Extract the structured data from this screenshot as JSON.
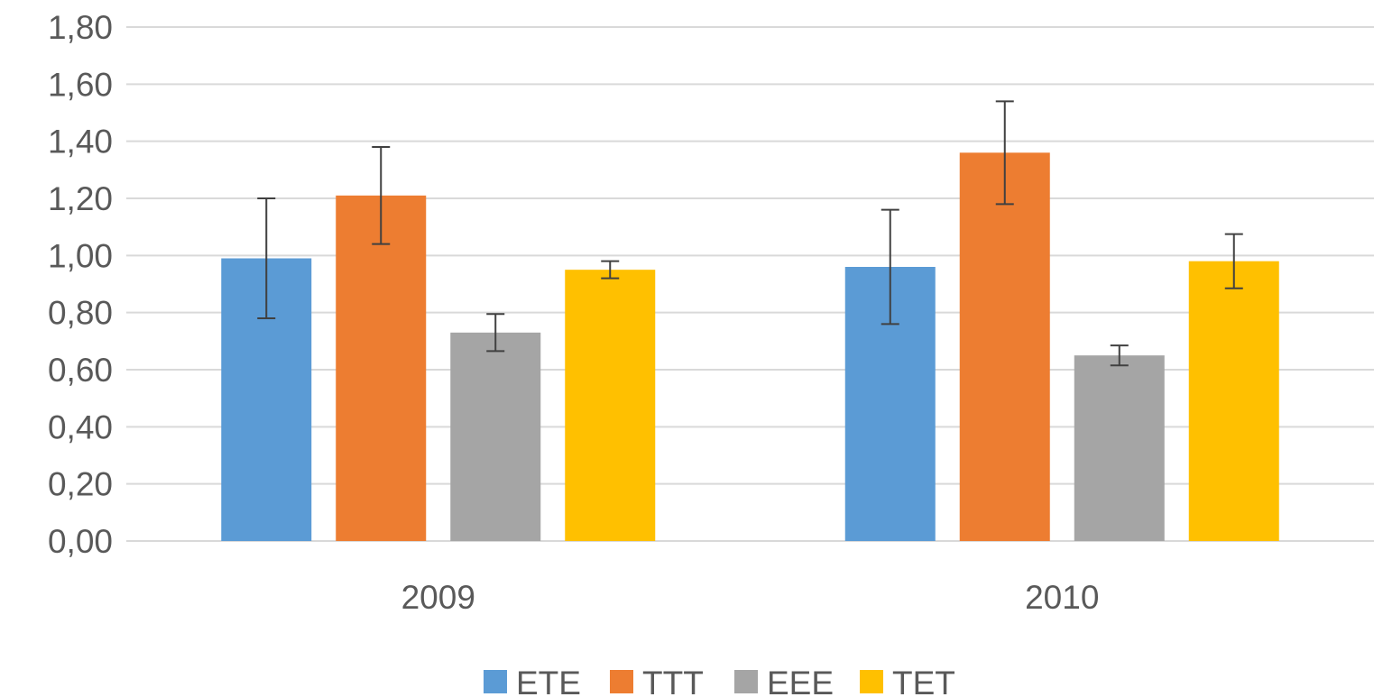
{
  "chart_data": {
    "type": "bar",
    "title": "",
    "xlabel": "",
    "ylabel": "",
    "categories": [
      "2009",
      "2010"
    ],
    "ylim": [
      0,
      1.8
    ],
    "yticks": [
      "0,00",
      "0,20",
      "0,40",
      "0,60",
      "0,80",
      "1,00",
      "1,20",
      "1,40",
      "1,60",
      "1,80"
    ],
    "ytick_values": [
      0,
      0.2,
      0.4,
      0.6,
      0.8,
      1.0,
      1.2,
      1.4,
      1.6,
      1.8
    ],
    "grid": true,
    "legend_position": "bottom",
    "series": [
      {
        "name": "ETE",
        "color": "#5b9bd5",
        "values": [
          0.99,
          0.96
        ],
        "error": [
          0.21,
          0.2
        ]
      },
      {
        "name": "TTT",
        "color": "#ed7d31",
        "values": [
          1.21,
          1.36
        ],
        "error": [
          0.17,
          0.18
        ]
      },
      {
        "name": "EEE",
        "color": "#a5a5a5",
        "values": [
          0.73,
          0.65
        ],
        "error": [
          0.065,
          0.035
        ]
      },
      {
        "name": "TET",
        "color": "#ffc000",
        "values": [
          0.95,
          0.98
        ],
        "error": [
          0.03,
          0.095
        ]
      }
    ]
  }
}
